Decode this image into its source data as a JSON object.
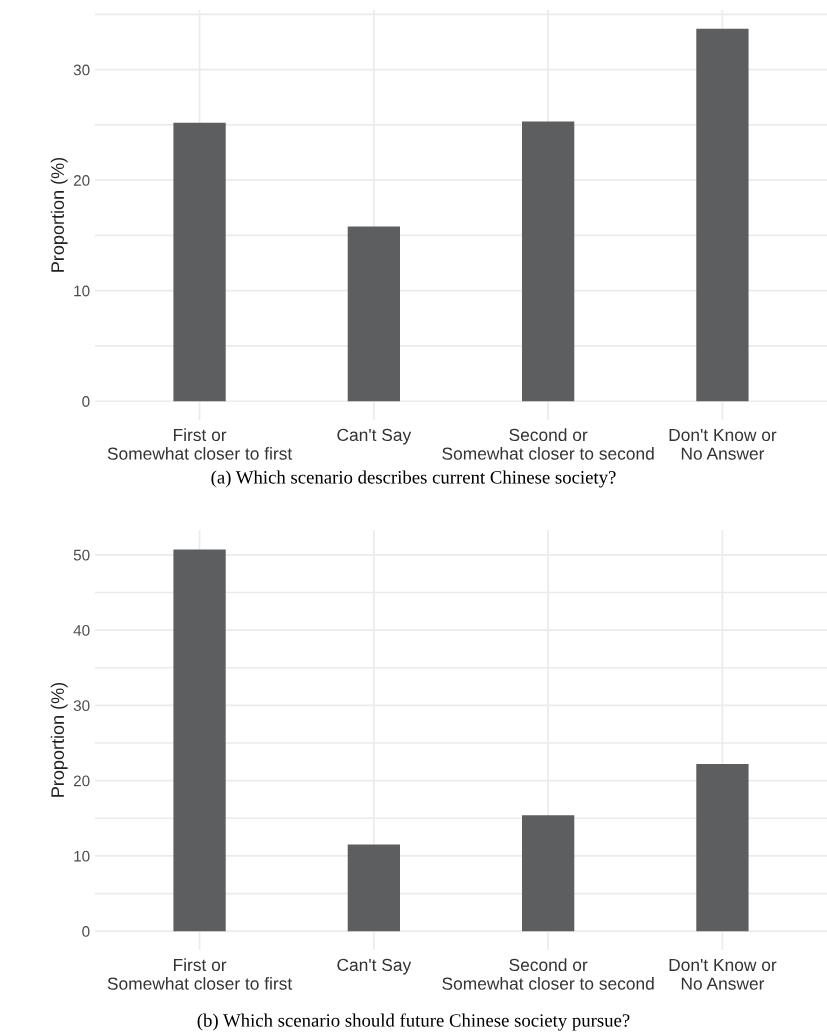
{
  "chart_data": [
    {
      "type": "bar",
      "categories": [
        "First or\nSomewhat closer to first",
        "Can't Say",
        "Second or\nSomewhat closer to second",
        "Don't Know or\nNo Answer"
      ],
      "values": [
        25.2,
        15.8,
        25.3,
        33.7
      ],
      "color": "#5d5e60",
      "ylabel": "Proportion (%)",
      "ylim": [
        -1.7,
        35.4
      ],
      "yticks": [
        0,
        {
          "value": 5,
          "label": null
        },
        10,
        {
          "value": 15,
          "label": null
        },
        20,
        {
          "value": 25,
          "label": null
        },
        30,
        {
          "value": 35,
          "label": null
        }
      ],
      "grid": true,
      "annotations": [
        "(a) Which scenario describes current Chinese society?"
      ]
    },
    {
      "type": "bar",
      "categories": [
        "First or\nSomewhat closer to first",
        "Can't Say",
        "Second or\nSomewhat closer to second",
        "Don't Know or\nNo Answer"
      ],
      "values": [
        50.7,
        11.5,
        15.4,
        22.2
      ],
      "color": "#5d5e60",
      "ylabel": "Proportion (%)",
      "ylim": [
        -2.5,
        53.3
      ],
      "yticks": [
        0,
        {
          "value": 5,
          "label": null
        },
        10,
        {
          "value": 15,
          "label": null
        },
        20,
        {
          "value": 25,
          "label": null
        },
        30,
        {
          "value": 35,
          "label": null
        },
        40,
        {
          "value": 45,
          "label": null
        },
        50
      ],
      "grid": true,
      "annotations": [
        "(b) Which scenario should future Chinese society pursue?"
      ]
    }
  ]
}
